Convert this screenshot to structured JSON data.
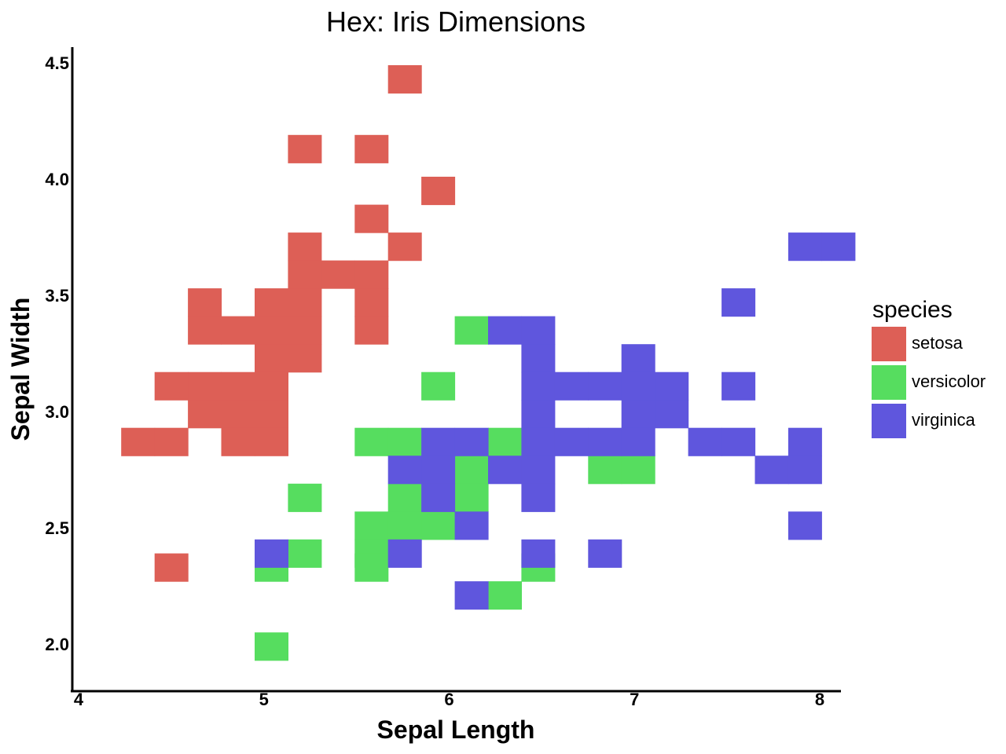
{
  "chart_data": {
    "type": "heatmap",
    "title": "Hex: Iris Dimensions",
    "xlabel": "Sepal Length",
    "ylabel": "Sepal Width",
    "xlim": [
      4,
      8.1
    ],
    "ylim": [
      1.8,
      4.55
    ],
    "x_ticks": [
      4,
      5,
      6,
      7,
      8
    ],
    "x_tick_labels": [
      "4",
      "5",
      "6",
      "7",
      "8"
    ],
    "y_ticks": [
      2.0,
      2.5,
      3.0,
      3.5,
      4.0,
      4.5
    ],
    "y_tick_labels": [
      "2.0",
      "2.5",
      "3.0",
      "3.5",
      "4.0",
      "4.5"
    ],
    "bin_width": 0.18,
    "bin_height": 0.12,
    "legend": {
      "title": "species",
      "placement": "right",
      "entries": [
        {
          "label": "setosa",
          "color": "#dd5f56"
        },
        {
          "label": "versicolor",
          "color": "#56dd5f"
        },
        {
          "label": "virginica",
          "color": "#5f56dd"
        }
      ]
    },
    "series": [
      {
        "name": "setosa",
        "color": "#dd5f56",
        "cells": [
          [
            5.76,
            4.43
          ],
          [
            5.22,
            4.13
          ],
          [
            5.58,
            4.13
          ],
          [
            5.94,
            3.95
          ],
          [
            5.58,
            3.83
          ],
          [
            5.22,
            3.71
          ],
          [
            5.76,
            3.71
          ],
          [
            5.22,
            3.59
          ],
          [
            5.4,
            3.59
          ],
          [
            5.58,
            3.59
          ],
          [
            4.68,
            3.47
          ],
          [
            5.04,
            3.47
          ],
          [
            5.22,
            3.47
          ],
          [
            5.58,
            3.47
          ],
          [
            4.68,
            3.35
          ],
          [
            4.86,
            3.35
          ],
          [
            5.04,
            3.35
          ],
          [
            5.22,
            3.35
          ],
          [
            5.58,
            3.35
          ],
          [
            5.04,
            3.23
          ],
          [
            5.22,
            3.23
          ],
          [
            4.5,
            3.11
          ],
          [
            4.68,
            3.11
          ],
          [
            4.86,
            3.11
          ],
          [
            5.04,
            3.11
          ],
          [
            4.68,
            2.99
          ],
          [
            4.86,
            2.99
          ],
          [
            5.04,
            2.99
          ],
          [
            4.32,
            2.87
          ],
          [
            4.5,
            2.87
          ],
          [
            4.86,
            2.87
          ],
          [
            5.04,
            2.87
          ],
          [
            4.5,
            2.33
          ]
        ]
      },
      {
        "name": "versicolor",
        "color": "#56dd5f",
        "cells": [
          [
            6.12,
            3.35
          ],
          [
            5.94,
            3.11
          ],
          [
            5.58,
            2.87
          ],
          [
            5.76,
            2.87
          ],
          [
            6.3,
            2.87
          ],
          [
            6.12,
            2.75
          ],
          [
            6.84,
            2.75
          ],
          [
            7.02,
            2.75
          ],
          [
            6.12,
            2.63
          ],
          [
            5.22,
            2.63
          ],
          [
            5.76,
            2.63
          ],
          [
            5.58,
            2.51
          ],
          [
            5.76,
            2.51
          ],
          [
            5.94,
            2.51
          ],
          [
            5.58,
            2.39
          ],
          [
            5.22,
            2.39
          ],
          [
            5.04,
            2.33
          ],
          [
            5.58,
            2.33
          ],
          [
            6.48,
            2.33
          ],
          [
            6.3,
            2.21
          ],
          [
            5.04,
            1.99
          ]
        ]
      },
      {
        "name": "virginica",
        "color": "#5f56dd",
        "cells": [
          [
            7.92,
            3.71
          ],
          [
            8.1,
            3.71
          ],
          [
            7.56,
            3.47
          ],
          [
            6.3,
            3.35
          ],
          [
            6.48,
            3.35
          ],
          [
            6.48,
            3.23
          ],
          [
            7.02,
            3.23
          ],
          [
            6.48,
            3.11
          ],
          [
            6.66,
            3.11
          ],
          [
            6.84,
            3.11
          ],
          [
            7.02,
            3.11
          ],
          [
            7.2,
            3.11
          ],
          [
            7.56,
            3.11
          ],
          [
            6.48,
            2.99
          ],
          [
            7.02,
            2.99
          ],
          [
            7.2,
            2.99
          ],
          [
            5.94,
            2.87
          ],
          [
            6.12,
            2.87
          ],
          [
            6.48,
            2.87
          ],
          [
            6.66,
            2.87
          ],
          [
            6.84,
            2.87
          ],
          [
            7.02,
            2.87
          ],
          [
            7.38,
            2.87
          ],
          [
            7.56,
            2.87
          ],
          [
            7.92,
            2.87
          ],
          [
            5.76,
            2.75
          ],
          [
            5.94,
            2.75
          ],
          [
            6.3,
            2.75
          ],
          [
            6.48,
            2.75
          ],
          [
            7.74,
            2.75
          ],
          [
            7.92,
            2.75
          ],
          [
            5.94,
            2.63
          ],
          [
            6.48,
            2.63
          ],
          [
            6.12,
            2.51
          ],
          [
            7.92,
            2.51
          ],
          [
            5.04,
            2.39
          ],
          [
            5.76,
            2.39
          ],
          [
            6.48,
            2.39
          ],
          [
            6.84,
            2.39
          ],
          [
            6.12,
            2.21
          ]
        ]
      }
    ]
  }
}
